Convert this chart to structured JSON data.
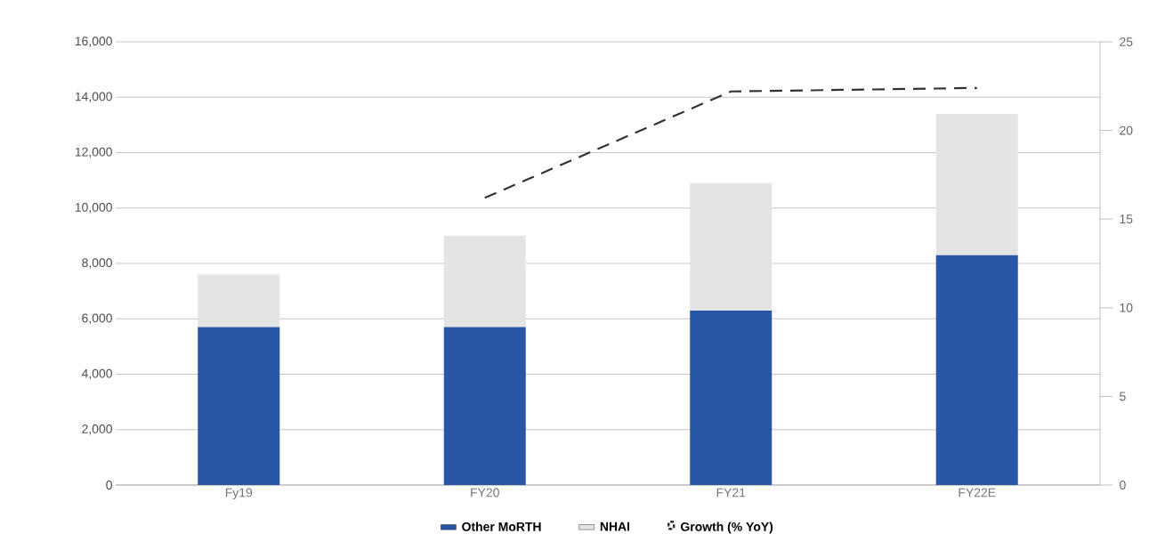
{
  "chart_data": {
    "type": "bar",
    "stacked": true,
    "categories": [
      "Fy19",
      "FY20",
      "FY21",
      "FY22E"
    ],
    "series": [
      {
        "name": "Other MoRTH",
        "color": "#2a56a8",
        "values": [
          5700,
          5700,
          6300,
          8300
        ]
      },
      {
        "name": "NHAI",
        "color": "#e4e4e4",
        "values": [
          1900,
          3300,
          4600,
          5100
        ]
      },
      {
        "name": "Growth (% YoY)",
        "type": "line",
        "axis": "y2",
        "line_style": "dashed",
        "color": "#333333",
        "values": [
          null,
          16.2,
          22.2,
          22.4
        ]
      }
    ],
    "ylim": [
      0,
      16000
    ],
    "yticks": [
      0,
      {
        "value": 2000,
        "label": "2,000"
      },
      {
        "value": 4000,
        "label": "4,000"
      },
      {
        "value": 6000,
        "label": "6,000"
      },
      {
        "value": 8000,
        "label": "8,000"
      },
      {
        "value": 10000,
        "label": "10,000"
      },
      {
        "value": 12000,
        "label": "12,000"
      },
      {
        "value": 14000,
        "label": "14,000"
      },
      {
        "value": 16000,
        "label": "16,000"
      }
    ],
    "y2lim": [
      0,
      25
    ],
    "y2ticks": [
      0,
      5,
      10,
      15,
      20,
      25
    ],
    "grid": "y",
    "legend": "bottom"
  }
}
